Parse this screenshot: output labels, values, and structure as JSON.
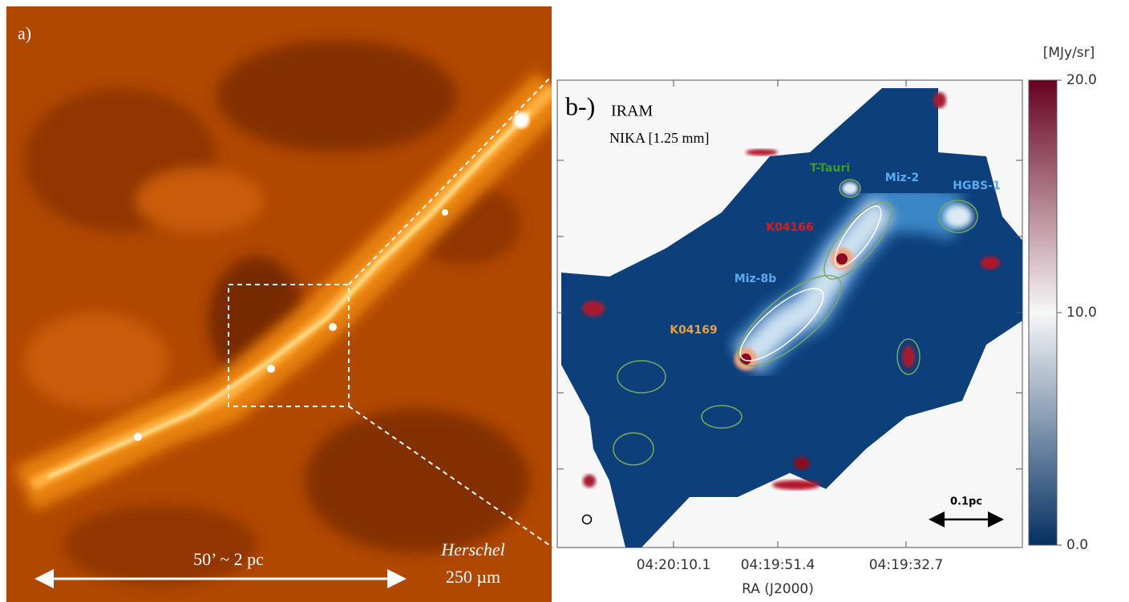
{
  "panel_a": {
    "label": "a)",
    "scale_text": "50’ ~ 2 pc",
    "instrument": "Herschel",
    "band": "250 µm"
  },
  "panel_b": {
    "label": "b-)",
    "telescope": "IRAM",
    "instrument": "NIKA [1.25 mm]",
    "sources": [
      {
        "name": "T-Tauri",
        "color": "#3a9a2a"
      },
      {
        "name": "Miz-2",
        "color": "#5aaaf0"
      },
      {
        "name": "HGBS-1",
        "color": "#5aaaf0"
      },
      {
        "name": "K04166",
        "color": "#d02020"
      },
      {
        "name": "Miz-8b",
        "color": "#5aaaf0"
      },
      {
        "name": "K04169",
        "color": "#e8a040"
      }
    ],
    "scale_bar": "0.1pc",
    "ra_ticks": [
      "04:20:10.1",
      "04:19:51.4",
      "04:19:32.7"
    ],
    "x_label": "RA (J2000)"
  },
  "colorbar": {
    "unit": "[MJy/sr]",
    "lim": [
      0,
      20
    ],
    "colors": [
      "#053061",
      "#f7f7f7",
      "#67001f"
    ],
    "ticks": [
      {
        "value": 20,
        "label": "20.0"
      },
      {
        "value": 10,
        "label": "10.0"
      },
      {
        "value": 0,
        "label": "0.0"
      }
    ]
  }
}
